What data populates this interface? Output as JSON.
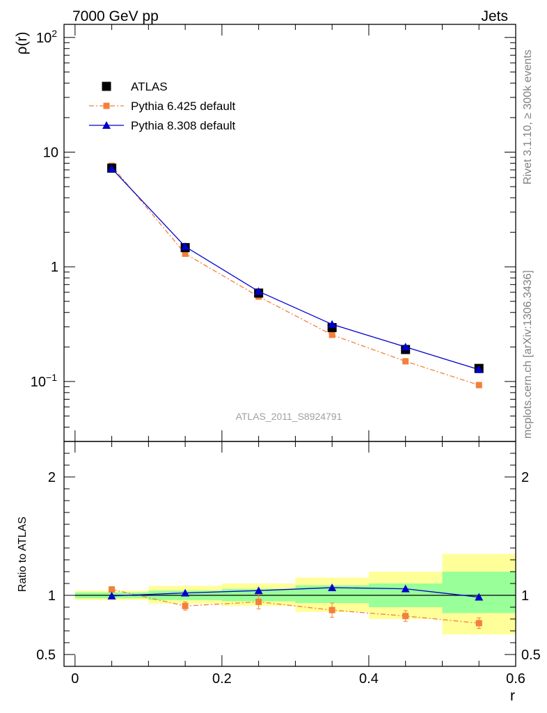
{
  "header": {
    "left": "7000 GeV pp",
    "right": "Jets"
  },
  "side_labels": {
    "rivet": "Rivet 3.1.10, ≥ 300k events",
    "mcplots": "mcplots.cern.ch [arXiv:1306.3436]"
  },
  "watermark": "ATLAS_2011_S8924791",
  "chart_data": [
    {
      "type": "line",
      "panel": "main",
      "ylabel": "ρ(r)",
      "yscale": "log",
      "ylim": [
        0.03,
        130
      ],
      "xlim": [
        -0.015,
        0.6
      ],
      "yticks": [
        {
          "v": 0.1,
          "base": "10",
          "exp": "−1"
        },
        {
          "v": 1,
          "label": "1"
        },
        {
          "v": 10,
          "label": "10"
        },
        {
          "v": 100,
          "base": "10",
          "exp": "2"
        }
      ],
      "legend_position": "top-left",
      "x": [
        0.05,
        0.15,
        0.25,
        0.35,
        0.45,
        0.55
      ],
      "series": [
        {
          "name": "ATLAS",
          "color": "#000000",
          "marker": "square",
          "line": "none",
          "values": [
            7.25,
            1.47,
            0.59,
            0.295,
            0.19,
            0.13
          ]
        },
        {
          "name": "Pythia 6.425 default",
          "color": "#f47f3a",
          "marker": "small-square",
          "line": "dashdot",
          "values": [
            7.6,
            1.3,
            0.55,
            0.255,
            0.15,
            0.093
          ]
        },
        {
          "name": "Pythia 8.308 default",
          "color": "#0000cc",
          "marker": "triangle",
          "line": "solid",
          "values": [
            7.2,
            1.5,
            0.61,
            0.315,
            0.2,
            0.127
          ]
        }
      ]
    },
    {
      "type": "line",
      "panel": "ratio",
      "ylabel": "Ratio to ATLAS",
      "xlabel": "r",
      "ylim": [
        0.4,
        2.3
      ],
      "xlim": [
        -0.015,
        0.6
      ],
      "xticks": [
        {
          "v": 0,
          "label": "0"
        },
        {
          "v": 0.2,
          "label": "0.2"
        },
        {
          "v": 0.4,
          "label": "0.4"
        },
        {
          "v": 0.6,
          "label": "0.6"
        }
      ],
      "yticks": [
        {
          "v": 0.5,
          "label": "0.5"
        },
        {
          "v": 1,
          "label": "1"
        },
        {
          "v": 2,
          "label": "2"
        }
      ],
      "bands": {
        "bins": [
          [
            0,
            0.1
          ],
          [
            0.1,
            0.2
          ],
          [
            0.2,
            0.3
          ],
          [
            0.3,
            0.4
          ],
          [
            0.4,
            0.5
          ],
          [
            0.5,
            0.6
          ]
        ],
        "yellow": [
          [
            0.96,
            1.04
          ],
          [
            0.93,
            1.08
          ],
          [
            0.91,
            1.1
          ],
          [
            0.86,
            1.15
          ],
          [
            0.8,
            1.2
          ],
          [
            0.67,
            1.35
          ]
        ],
        "green": [
          [
            0.975,
            1.025
          ],
          [
            0.96,
            1.04
          ],
          [
            0.95,
            1.055
          ],
          [
            0.935,
            1.085
          ],
          [
            0.9,
            1.1
          ],
          [
            0.85,
            1.2
          ]
        ],
        "yellow_color": "#ffff99",
        "green_color": "#99ff99"
      },
      "x": [
        0.05,
        0.15,
        0.25,
        0.35,
        0.45,
        0.55
      ],
      "series": [
        {
          "name": "Pythia 6.425 default",
          "color": "#f47f3a",
          "marker": "small-square",
          "line": "dashdot",
          "values": [
            1.05,
            0.91,
            0.945,
            0.875,
            0.825,
            0.765
          ],
          "errors": [
            0.01,
            0.035,
            0.06,
            0.06,
            0.045,
            0.045
          ]
        },
        {
          "name": "Pythia 8.308 default",
          "color": "#0000cc",
          "marker": "triangle",
          "line": "solid",
          "values": [
            0.995,
            1.02,
            1.04,
            1.065,
            1.055,
            0.985
          ]
        }
      ]
    }
  ]
}
